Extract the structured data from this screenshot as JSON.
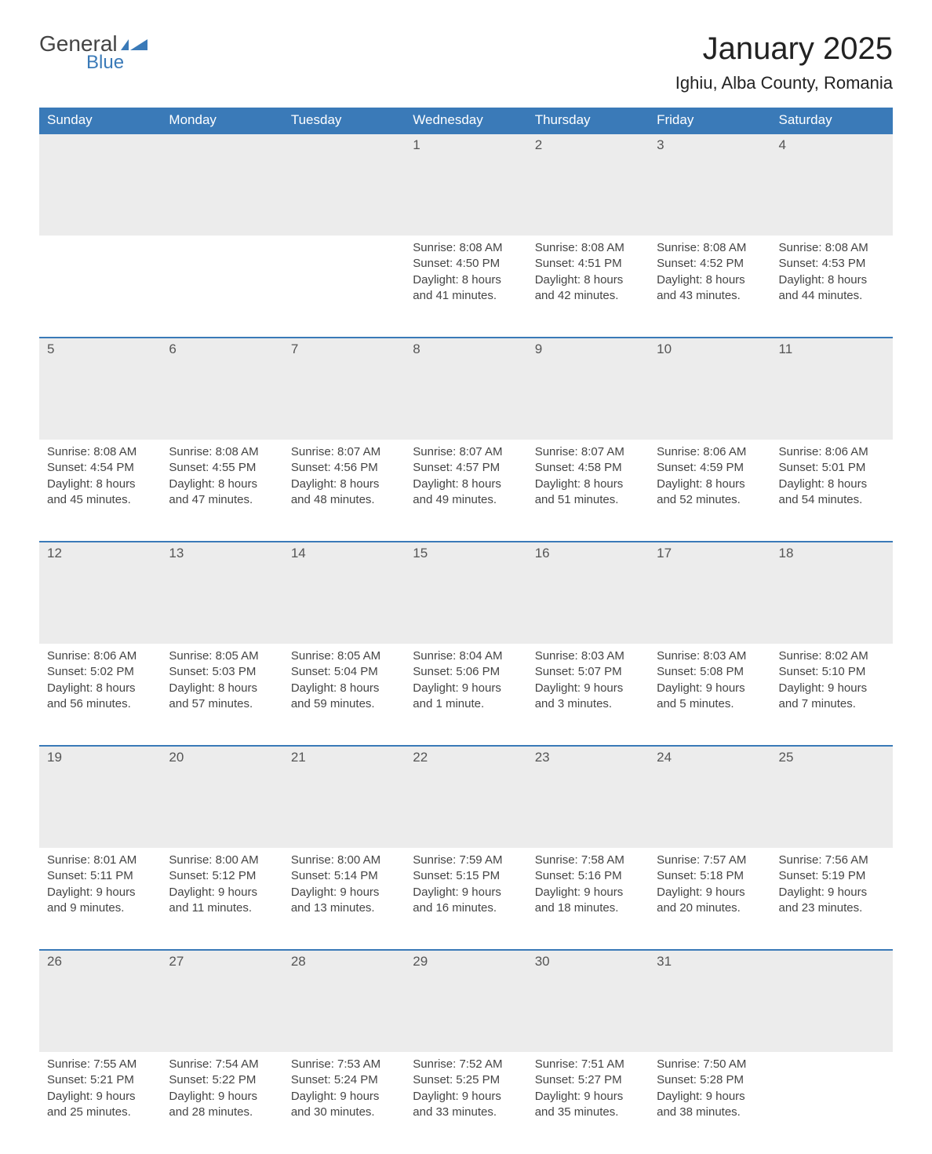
{
  "logo": {
    "text_general": "General",
    "text_blue": "Blue",
    "icon_color": "#3a7ab8",
    "general_color": "#444444",
    "blue_color": "#3a7ab8"
  },
  "header": {
    "month_title": "January 2025",
    "location": "Ighiu, Alba County, Romania",
    "title_fontsize": 40,
    "location_fontsize": 22,
    "title_color": "#222222"
  },
  "calendar": {
    "type": "table",
    "header_bg": "#3a7ab8",
    "header_text_color": "#ffffff",
    "daynum_bg": "#ececec",
    "daynum_border_top": "#3a7ab8",
    "body_text_color": "#444444",
    "columns": [
      "Sunday",
      "Monday",
      "Tuesday",
      "Wednesday",
      "Thursday",
      "Friday",
      "Saturday"
    ],
    "weeks": [
      [
        null,
        null,
        null,
        {
          "d": "1",
          "sr": "Sunrise: 8:08 AM",
          "ss": "Sunset: 4:50 PM",
          "dl1": "Daylight: 8 hours",
          "dl2": "and 41 minutes."
        },
        {
          "d": "2",
          "sr": "Sunrise: 8:08 AM",
          "ss": "Sunset: 4:51 PM",
          "dl1": "Daylight: 8 hours",
          "dl2": "and 42 minutes."
        },
        {
          "d": "3",
          "sr": "Sunrise: 8:08 AM",
          "ss": "Sunset: 4:52 PM",
          "dl1": "Daylight: 8 hours",
          "dl2": "and 43 minutes."
        },
        {
          "d": "4",
          "sr": "Sunrise: 8:08 AM",
          "ss": "Sunset: 4:53 PM",
          "dl1": "Daylight: 8 hours",
          "dl2": "and 44 minutes."
        }
      ],
      [
        {
          "d": "5",
          "sr": "Sunrise: 8:08 AM",
          "ss": "Sunset: 4:54 PM",
          "dl1": "Daylight: 8 hours",
          "dl2": "and 45 minutes."
        },
        {
          "d": "6",
          "sr": "Sunrise: 8:08 AM",
          "ss": "Sunset: 4:55 PM",
          "dl1": "Daylight: 8 hours",
          "dl2": "and 47 minutes."
        },
        {
          "d": "7",
          "sr": "Sunrise: 8:07 AM",
          "ss": "Sunset: 4:56 PM",
          "dl1": "Daylight: 8 hours",
          "dl2": "and 48 minutes."
        },
        {
          "d": "8",
          "sr": "Sunrise: 8:07 AM",
          "ss": "Sunset: 4:57 PM",
          "dl1": "Daylight: 8 hours",
          "dl2": "and 49 minutes."
        },
        {
          "d": "9",
          "sr": "Sunrise: 8:07 AM",
          "ss": "Sunset: 4:58 PM",
          "dl1": "Daylight: 8 hours",
          "dl2": "and 51 minutes."
        },
        {
          "d": "10",
          "sr": "Sunrise: 8:06 AM",
          "ss": "Sunset: 4:59 PM",
          "dl1": "Daylight: 8 hours",
          "dl2": "and 52 minutes."
        },
        {
          "d": "11",
          "sr": "Sunrise: 8:06 AM",
          "ss": "Sunset: 5:01 PM",
          "dl1": "Daylight: 8 hours",
          "dl2": "and 54 minutes."
        }
      ],
      [
        {
          "d": "12",
          "sr": "Sunrise: 8:06 AM",
          "ss": "Sunset: 5:02 PM",
          "dl1": "Daylight: 8 hours",
          "dl2": "and 56 minutes."
        },
        {
          "d": "13",
          "sr": "Sunrise: 8:05 AM",
          "ss": "Sunset: 5:03 PM",
          "dl1": "Daylight: 8 hours",
          "dl2": "and 57 minutes."
        },
        {
          "d": "14",
          "sr": "Sunrise: 8:05 AM",
          "ss": "Sunset: 5:04 PM",
          "dl1": "Daylight: 8 hours",
          "dl2": "and 59 minutes."
        },
        {
          "d": "15",
          "sr": "Sunrise: 8:04 AM",
          "ss": "Sunset: 5:06 PM",
          "dl1": "Daylight: 9 hours",
          "dl2": "and 1 minute."
        },
        {
          "d": "16",
          "sr": "Sunrise: 8:03 AM",
          "ss": "Sunset: 5:07 PM",
          "dl1": "Daylight: 9 hours",
          "dl2": "and 3 minutes."
        },
        {
          "d": "17",
          "sr": "Sunrise: 8:03 AM",
          "ss": "Sunset: 5:08 PM",
          "dl1": "Daylight: 9 hours",
          "dl2": "and 5 minutes."
        },
        {
          "d": "18",
          "sr": "Sunrise: 8:02 AM",
          "ss": "Sunset: 5:10 PM",
          "dl1": "Daylight: 9 hours",
          "dl2": "and 7 minutes."
        }
      ],
      [
        {
          "d": "19",
          "sr": "Sunrise: 8:01 AM",
          "ss": "Sunset: 5:11 PM",
          "dl1": "Daylight: 9 hours",
          "dl2": "and 9 minutes."
        },
        {
          "d": "20",
          "sr": "Sunrise: 8:00 AM",
          "ss": "Sunset: 5:12 PM",
          "dl1": "Daylight: 9 hours",
          "dl2": "and 11 minutes."
        },
        {
          "d": "21",
          "sr": "Sunrise: 8:00 AM",
          "ss": "Sunset: 5:14 PM",
          "dl1": "Daylight: 9 hours",
          "dl2": "and 13 minutes."
        },
        {
          "d": "22",
          "sr": "Sunrise: 7:59 AM",
          "ss": "Sunset: 5:15 PM",
          "dl1": "Daylight: 9 hours",
          "dl2": "and 16 minutes."
        },
        {
          "d": "23",
          "sr": "Sunrise: 7:58 AM",
          "ss": "Sunset: 5:16 PM",
          "dl1": "Daylight: 9 hours",
          "dl2": "and 18 minutes."
        },
        {
          "d": "24",
          "sr": "Sunrise: 7:57 AM",
          "ss": "Sunset: 5:18 PM",
          "dl1": "Daylight: 9 hours",
          "dl2": "and 20 minutes."
        },
        {
          "d": "25",
          "sr": "Sunrise: 7:56 AM",
          "ss": "Sunset: 5:19 PM",
          "dl1": "Daylight: 9 hours",
          "dl2": "and 23 minutes."
        }
      ],
      [
        {
          "d": "26",
          "sr": "Sunrise: 7:55 AM",
          "ss": "Sunset: 5:21 PM",
          "dl1": "Daylight: 9 hours",
          "dl2": "and 25 minutes."
        },
        {
          "d": "27",
          "sr": "Sunrise: 7:54 AM",
          "ss": "Sunset: 5:22 PM",
          "dl1": "Daylight: 9 hours",
          "dl2": "and 28 minutes."
        },
        {
          "d": "28",
          "sr": "Sunrise: 7:53 AM",
          "ss": "Sunset: 5:24 PM",
          "dl1": "Daylight: 9 hours",
          "dl2": "and 30 minutes."
        },
        {
          "d": "29",
          "sr": "Sunrise: 7:52 AM",
          "ss": "Sunset: 5:25 PM",
          "dl1": "Daylight: 9 hours",
          "dl2": "and 33 minutes."
        },
        {
          "d": "30",
          "sr": "Sunrise: 7:51 AM",
          "ss": "Sunset: 5:27 PM",
          "dl1": "Daylight: 9 hours",
          "dl2": "and 35 minutes."
        },
        {
          "d": "31",
          "sr": "Sunrise: 7:50 AM",
          "ss": "Sunset: 5:28 PM",
          "dl1": "Daylight: 9 hours",
          "dl2": "and 38 minutes."
        },
        null
      ]
    ]
  }
}
